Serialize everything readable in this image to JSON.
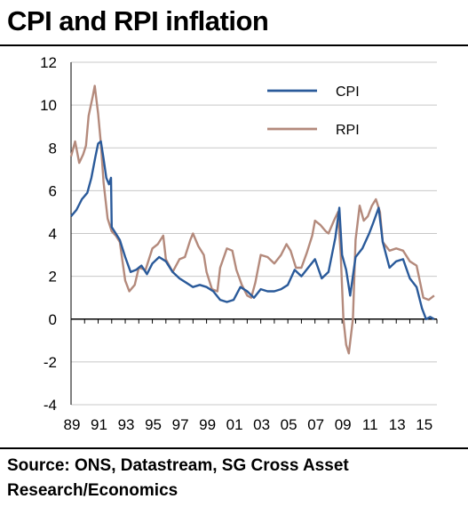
{
  "title": "CPI and RPI inflation",
  "source": "Source: ONS, Datastream, SG Cross Asset Research/Economics",
  "colors": {
    "cpi": "#2a5a9a",
    "rpi": "#b48a7c",
    "grid": "#c8c8c8"
  },
  "chart_data": {
    "type": "line",
    "title": "CPI and RPI inflation",
    "xlabel": "",
    "ylabel": "",
    "xlim": [
      1989,
      2016
    ],
    "ylim": [
      -4,
      12
    ],
    "x_ticks": [
      1989,
      1991,
      1993,
      1995,
      1997,
      1999,
      2001,
      2003,
      2005,
      2007,
      2009,
      2011,
      2013,
      2015
    ],
    "x_tick_labels": [
      "89",
      "91",
      "93",
      "95",
      "97",
      "99",
      "01",
      "03",
      "05",
      "07",
      "09",
      "11",
      "13",
      "15"
    ],
    "y_ticks": [
      -4,
      -2,
      0,
      2,
      4,
      6,
      8,
      10,
      12
    ],
    "grid": "horizontal",
    "legend": "top-right",
    "series": [
      {
        "name": "CPI",
        "color": "#2a5a9a",
        "points": [
          [
            1989.0,
            4.8
          ],
          [
            1989.4,
            5.1
          ],
          [
            1989.8,
            5.6
          ],
          [
            1990.2,
            5.9
          ],
          [
            1990.5,
            6.6
          ],
          [
            1990.8,
            7.6
          ],
          [
            1991.0,
            8.2
          ],
          [
            1991.2,
            8.3
          ],
          [
            1991.4,
            7.5
          ],
          [
            1991.6,
            6.6
          ],
          [
            1991.8,
            6.3
          ],
          [
            1991.95,
            6.6
          ],
          [
            1992.0,
            4.3
          ],
          [
            1992.3,
            4.0
          ],
          [
            1992.6,
            3.7
          ],
          [
            1993.0,
            2.9
          ],
          [
            1993.4,
            2.2
          ],
          [
            1993.8,
            2.3
          ],
          [
            1994.2,
            2.5
          ],
          [
            1994.6,
            2.1
          ],
          [
            1995.0,
            2.6
          ],
          [
            1995.5,
            2.9
          ],
          [
            1996.0,
            2.7
          ],
          [
            1996.5,
            2.2
          ],
          [
            1997.0,
            1.9
          ],
          [
            1997.5,
            1.7
          ],
          [
            1998.0,
            1.5
          ],
          [
            1998.5,
            1.6
          ],
          [
            1999.0,
            1.5
          ],
          [
            1999.5,
            1.3
          ],
          [
            2000.0,
            0.9
          ],
          [
            2000.5,
            0.8
          ],
          [
            2001.0,
            0.9
          ],
          [
            2001.5,
            1.5
          ],
          [
            2002.0,
            1.3
          ],
          [
            2002.5,
            1.0
          ],
          [
            2003.0,
            1.4
          ],
          [
            2003.5,
            1.3
          ],
          [
            2004.0,
            1.3
          ],
          [
            2004.5,
            1.4
          ],
          [
            2005.0,
            1.6
          ],
          [
            2005.5,
            2.3
          ],
          [
            2006.0,
            2.0
          ],
          [
            2006.5,
            2.4
          ],
          [
            2007.0,
            2.8
          ],
          [
            2007.5,
            1.9
          ],
          [
            2008.0,
            2.2
          ],
          [
            2008.5,
            3.8
          ],
          [
            2008.8,
            5.2
          ],
          [
            2009.0,
            3.0
          ],
          [
            2009.3,
            2.3
          ],
          [
            2009.6,
            1.1
          ],
          [
            2010.0,
            2.9
          ],
          [
            2010.5,
            3.3
          ],
          [
            2011.0,
            4.0
          ],
          [
            2011.3,
            4.5
          ],
          [
            2011.7,
            5.2
          ],
          [
            2012.0,
            3.6
          ],
          [
            2012.5,
            2.4
          ],
          [
            2013.0,
            2.7
          ],
          [
            2013.5,
            2.8
          ],
          [
            2014.0,
            1.9
          ],
          [
            2014.5,
            1.5
          ],
          [
            2014.9,
            0.5
          ],
          [
            2015.2,
            0.0
          ],
          [
            2015.5,
            0.1
          ],
          [
            2015.8,
            0.0
          ]
        ]
      },
      {
        "name": "RPI",
        "color": "#b48a7c",
        "points": [
          [
            1989.0,
            7.6
          ],
          [
            1989.3,
            8.3
          ],
          [
            1989.6,
            7.3
          ],
          [
            1989.9,
            7.7
          ],
          [
            1990.1,
            8.1
          ],
          [
            1990.3,
            9.5
          ],
          [
            1990.6,
            10.4
          ],
          [
            1990.75,
            10.9
          ],
          [
            1991.0,
            9.6
          ],
          [
            1991.2,
            8.2
          ],
          [
            1991.4,
            6.4
          ],
          [
            1991.7,
            4.7
          ],
          [
            1992.0,
            4.1
          ],
          [
            1992.3,
            3.9
          ],
          [
            1992.6,
            3.6
          ],
          [
            1993.0,
            1.8
          ],
          [
            1993.3,
            1.3
          ],
          [
            1993.7,
            1.6
          ],
          [
            1994.0,
            2.4
          ],
          [
            1994.5,
            2.3
          ],
          [
            1995.0,
            3.3
          ],
          [
            1995.4,
            3.5
          ],
          [
            1995.8,
            3.9
          ],
          [
            1996.0,
            2.8
          ],
          [
            1996.5,
            2.2
          ],
          [
            1997.0,
            2.8
          ],
          [
            1997.4,
            2.9
          ],
          [
            1997.8,
            3.7
          ],
          [
            1998.0,
            4.0
          ],
          [
            1998.4,
            3.4
          ],
          [
            1998.8,
            3.0
          ],
          [
            1999.0,
            2.2
          ],
          [
            1999.4,
            1.4
          ],
          [
            1999.8,
            1.3
          ],
          [
            2000.0,
            2.4
          ],
          [
            2000.5,
            3.3
          ],
          [
            2000.9,
            3.2
          ],
          [
            2001.2,
            2.3
          ],
          [
            2001.6,
            1.6
          ],
          [
            2002.0,
            1.1
          ],
          [
            2002.3,
            1.0
          ],
          [
            2002.6,
            1.7
          ],
          [
            2003.0,
            3.0
          ],
          [
            2003.5,
            2.9
          ],
          [
            2004.0,
            2.6
          ],
          [
            2004.5,
            3.0
          ],
          [
            2004.9,
            3.5
          ],
          [
            2005.2,
            3.2
          ],
          [
            2005.6,
            2.4
          ],
          [
            2006.0,
            2.4
          ],
          [
            2006.4,
            3.1
          ],
          [
            2006.8,
            3.9
          ],
          [
            2007.0,
            4.6
          ],
          [
            2007.4,
            4.4
          ],
          [
            2007.8,
            4.1
          ],
          [
            2008.0,
            4.0
          ],
          [
            2008.4,
            4.6
          ],
          [
            2008.7,
            5.0
          ],
          [
            2008.9,
            3.0
          ],
          [
            2009.1,
            0.0
          ],
          [
            2009.3,
            -1.2
          ],
          [
            2009.5,
            -1.6
          ],
          [
            2009.8,
            0.0
          ],
          [
            2010.0,
            3.7
          ],
          [
            2010.3,
            5.3
          ],
          [
            2010.6,
            4.6
          ],
          [
            2010.9,
            4.8
          ],
          [
            2011.2,
            5.3
          ],
          [
            2011.5,
            5.6
          ],
          [
            2011.8,
            5.0
          ],
          [
            2012.0,
            3.6
          ],
          [
            2012.5,
            3.2
          ],
          [
            2013.0,
            3.3
          ],
          [
            2013.5,
            3.2
          ],
          [
            2014.0,
            2.7
          ],
          [
            2014.5,
            2.5
          ],
          [
            2015.0,
            1.0
          ],
          [
            2015.4,
            0.9
          ],
          [
            2015.8,
            1.1
          ]
        ]
      }
    ]
  }
}
